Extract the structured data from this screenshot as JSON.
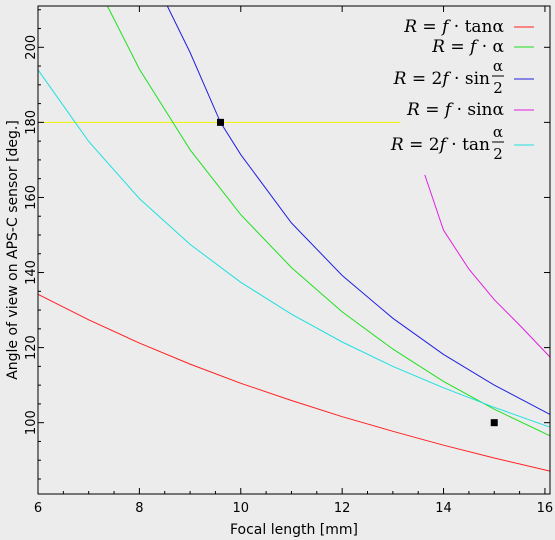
{
  "chart_data": {
    "type": "line",
    "title": "",
    "xlabel": "Focal length [mm]",
    "ylabel": "Angle of view on APS-C sensor [deg.]",
    "xlim": [
      6,
      16.1
    ],
    "ylim": [
      81,
      211
    ],
    "xticks": [
      6,
      8,
      10,
      12,
      14,
      16
    ],
    "yticks": [
      100,
      120,
      140,
      160,
      180,
      200
    ],
    "grid": false,
    "legend_position": "top-right",
    "background_color": "#ececec",
    "series": [
      {
        "name": "R = f·tanα",
        "color": "#ff2020",
        "points": [
          [
            6.0,
            134.2
          ],
          [
            7.0,
            127.4
          ],
          [
            8.0,
            121.2
          ],
          [
            9.0,
            115.6
          ],
          [
            10.0,
            110.5
          ],
          [
            11.0,
            105.9
          ],
          [
            12.0,
            101.6
          ],
          [
            13.0,
            97.7
          ],
          [
            14.0,
            94.0
          ],
          [
            15.0,
            90.6
          ],
          [
            16.1,
            87.1
          ]
        ]
      },
      {
        "name": "R = f·α",
        "color": "#20e020",
        "points": [
          [
            7.37,
            211.0
          ],
          [
            8.0,
            194.2
          ],
          [
            9.0,
            172.7
          ],
          [
            10.0,
            155.4
          ],
          [
            11.0,
            141.3
          ],
          [
            12.0,
            129.5
          ],
          [
            13.0,
            119.6
          ],
          [
            14.0,
            111.0
          ],
          [
            15.0,
            103.6
          ],
          [
            16.1,
            96.5
          ]
        ]
      },
      {
        "name": "R = 2f·sin(α/2)",
        "color": "#2020e0",
        "points": [
          [
            8.55,
            211.0
          ],
          [
            9.0,
            198.6
          ],
          [
            9.6,
            180.0
          ],
          [
            10.0,
            171.4
          ],
          [
            11.0,
            153.2
          ],
          [
            12.0,
            139.2
          ],
          [
            13.0,
            127.8
          ],
          [
            14.0,
            118.2
          ],
          [
            15.0,
            110.0
          ],
          [
            16.1,
            102.2
          ]
        ]
      },
      {
        "name": "R = f·sinα",
        "color": "#e020e0",
        "points": [
          [
            13.63,
            166.0
          ],
          [
            14.0,
            151.3
          ],
          [
            14.5,
            140.9
          ],
          [
            15.0,
            132.8
          ],
          [
            15.5,
            126.0
          ],
          [
            16.1,
            117.5
          ]
        ]
      },
      {
        "name": "R = 2f·tan(α/2)",
        "color": "#20e0e0",
        "points": [
          [
            6.0,
            194.0
          ],
          [
            7.0,
            174.9
          ],
          [
            8.0,
            159.7
          ],
          [
            9.0,
            147.5
          ],
          [
            10.0,
            137.4
          ],
          [
            11.0,
            128.9
          ],
          [
            12.0,
            121.5
          ],
          [
            13.0,
            115.0
          ],
          [
            14.0,
            109.3
          ],
          [
            15.0,
            104.1
          ],
          [
            16.1,
            98.8
          ]
        ]
      }
    ],
    "reference_line": {
      "y": 180,
      "x_range": [
        6,
        13.15
      ],
      "color": "#f0f000"
    },
    "markers": [
      {
        "x": 9.6,
        "y": 180,
        "color": "#000000"
      },
      {
        "x": 15.0,
        "y": 100,
        "color": "#000000"
      }
    ]
  },
  "legend": [
    {
      "lhs": "R",
      "eq": "=",
      "factor": "",
      "f": "f",
      "op": "·",
      "func": "tan",
      "arg": "α",
      "fraction": false
    },
    {
      "lhs": "R",
      "eq": "=",
      "factor": "",
      "f": "f",
      "op": "·",
      "func": "",
      "arg": "α",
      "fraction": false
    },
    {
      "lhs": "R",
      "eq": "=",
      "factor": "2",
      "f": "f",
      "op": "·",
      "func": "sin",
      "num": "α",
      "den": "2",
      "fraction": true
    },
    {
      "lhs": "R",
      "eq": "=",
      "factor": "",
      "f": "f",
      "op": "·",
      "func": "sin",
      "arg": "α",
      "fraction": false
    },
    {
      "lhs": "R",
      "eq": "=",
      "factor": "2",
      "f": "f",
      "op": "·",
      "func": "tan",
      "num": "α",
      "den": "2",
      "fraction": true
    }
  ]
}
